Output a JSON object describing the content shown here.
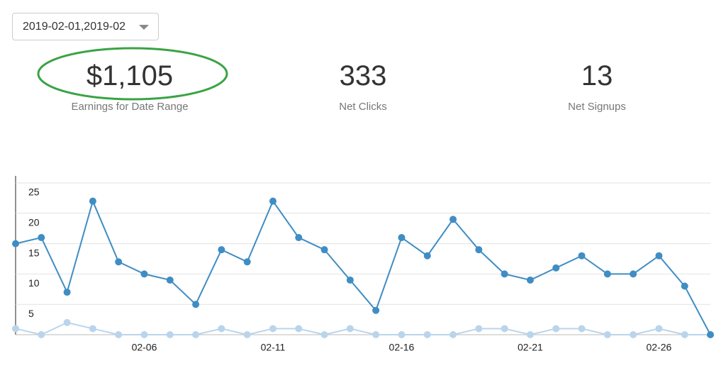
{
  "filter": {
    "date_range": "2019-02-01,2019-02"
  },
  "stats": [
    {
      "value": "$1,105",
      "label": "Earnings for Date Range"
    },
    {
      "value": "333",
      "label": "Net Clicks"
    },
    {
      "value": "13",
      "label": "Net Signups"
    }
  ],
  "chart_data": {
    "type": "line",
    "categories": [
      null,
      null,
      null,
      null,
      null,
      "02-06",
      null,
      null,
      null,
      null,
      "02-11",
      null,
      null,
      null,
      null,
      "02-16",
      null,
      null,
      null,
      null,
      "02-21",
      null,
      null,
      null,
      null,
      "02-26",
      null,
      null
    ],
    "series": [
      {
        "color": "#3f8dc4",
        "values": [
          15,
          16,
          7,
          22,
          12,
          10,
          9,
          5,
          14,
          12,
          22,
          16,
          14,
          9,
          4,
          16,
          13,
          19,
          14,
          10,
          9,
          11,
          13,
          10,
          10,
          13,
          8,
          0
        ]
      },
      {
        "color": "#b9d5ec",
        "values": [
          1,
          0,
          2,
          1,
          0,
          0,
          0,
          0,
          1,
          0,
          1,
          1,
          0,
          1,
          0,
          0,
          0,
          0,
          1,
          1,
          0,
          1,
          1,
          0,
          0,
          1,
          0,
          0
        ]
      }
    ],
    "ylim": [
      0,
      25
    ],
    "yticks": [
      5,
      10,
      15,
      20,
      25
    ],
    "grid": true
  }
}
